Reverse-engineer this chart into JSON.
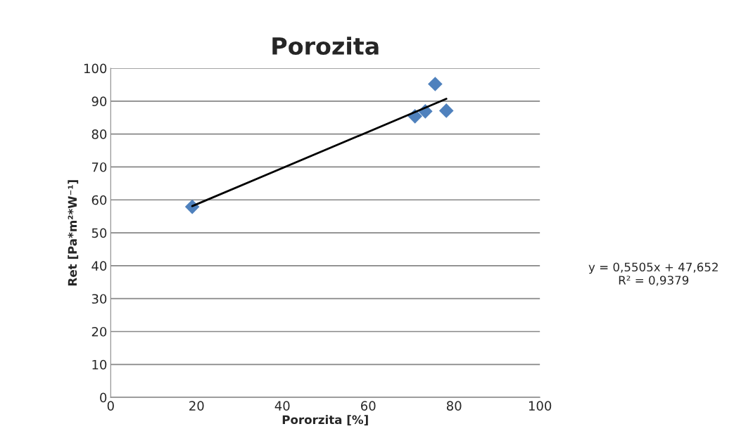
{
  "chart_data": {
    "type": "scatter",
    "title": "Porozita",
    "xlabel": "Pororzita [%]",
    "ylabel": "Ret [Pa*m²*W⁻¹]",
    "series": [
      {
        "color": "#4f81bd",
        "marker": "diamond",
        "x": [
          19.0,
          70.9,
          73.3,
          75.6,
          78.2
        ],
        "values": [
          57.9,
          85.4,
          86.9,
          95.2,
          87.1
        ]
      },
      {
        "type": "line",
        "color": "#000000",
        "marker": "none",
        "line_style": "solid",
        "x": [
          19.0,
          78.2
        ],
        "values": [
          58.1,
          90.7
        ]
      }
    ],
    "xlim": [
      0,
      100
    ],
    "xticks": [
      0,
      20,
      40,
      60,
      80,
      100
    ],
    "ylim": [
      0,
      100
    ],
    "yticks": [
      0,
      10,
      20,
      30,
      40,
      50,
      60,
      70,
      80,
      90,
      100
    ],
    "grid": "y",
    "legend": false,
    "annotations": [
      "y = 0,5505x + 47,652\nR² = 0,9379"
    ]
  }
}
